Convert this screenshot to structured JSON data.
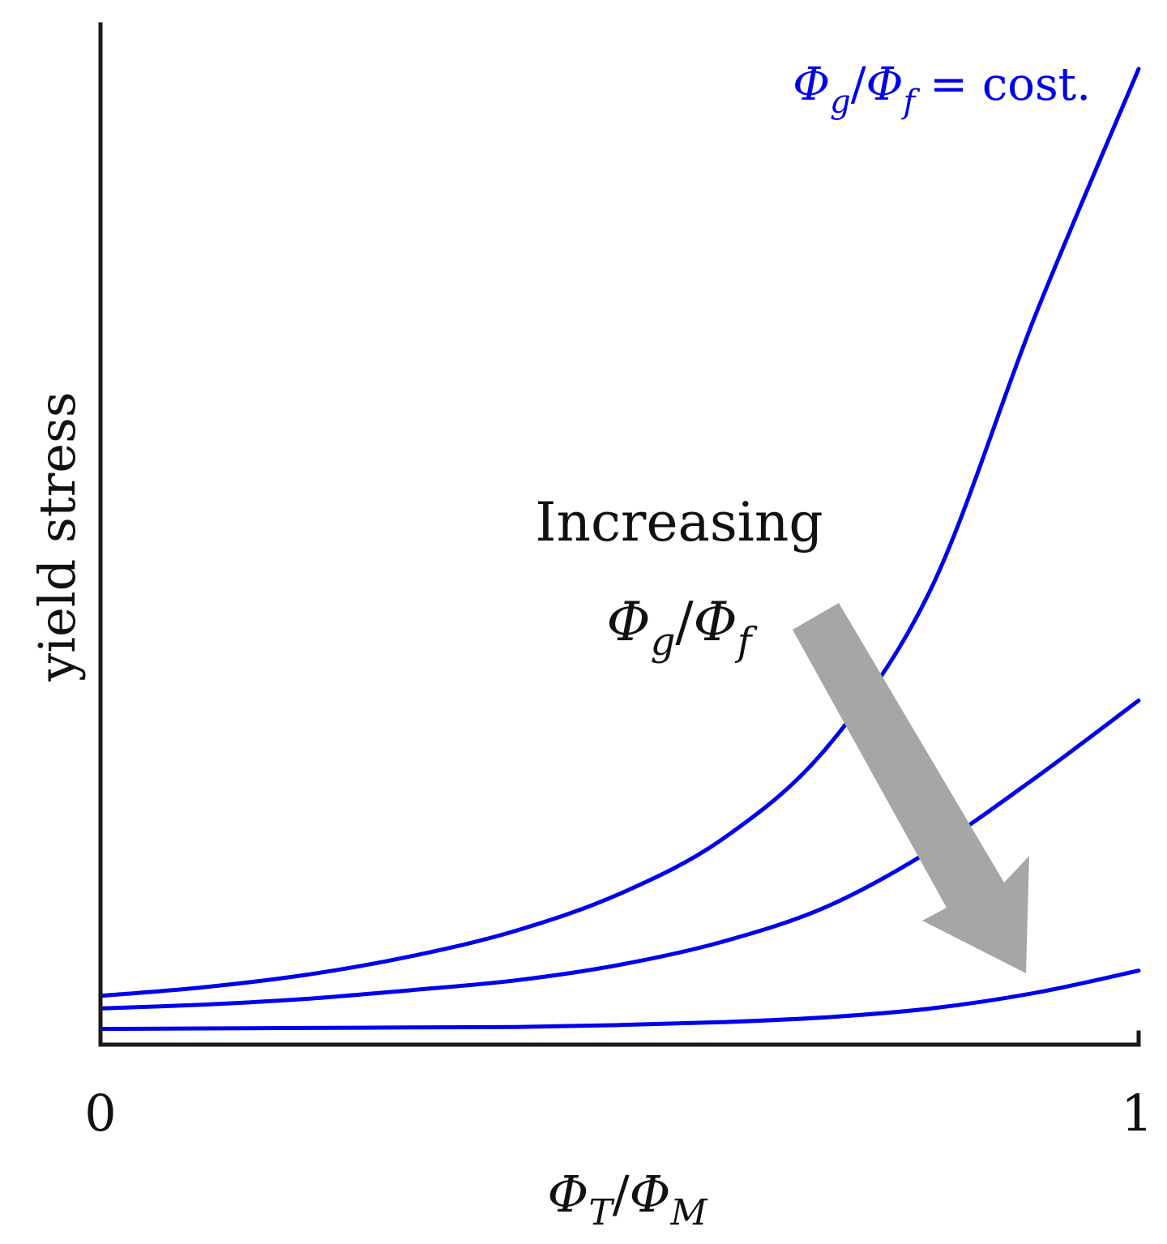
{
  "chart_data": {
    "type": "line",
    "xlabel": {
      "base1": "Φ",
      "sub1": "T",
      "slash": "/",
      "base2": "Φ",
      "sub2": "M"
    },
    "ylabel": "yield stress",
    "xlim": [
      0,
      1
    ],
    "xticks": [
      "0",
      "1"
    ],
    "grid": false,
    "curve_annotation": {
      "base1": "Φ",
      "sub1": "g",
      "slash": "/",
      "base2": "Φ",
      "sub2": "f",
      "suffix": " = cost."
    },
    "trend_annotation": {
      "line1": "Increasing",
      "base1": "Φ",
      "sub1": "g",
      "slash": "/",
      "base2": "Φ",
      "sub2": "f"
    },
    "colors": {
      "series": "#0000ee",
      "arrow": "#a6a6a6",
      "axis": "#1a1a1a"
    },
    "series": [
      {
        "points": [
          [
            0,
            0.046
          ],
          [
            0.1,
            0.055
          ],
          [
            0.2,
            0.068
          ],
          [
            0.3,
            0.087
          ],
          [
            0.4,
            0.113
          ],
          [
            0.5,
            0.151
          ],
          [
            0.6,
            0.208
          ],
          [
            0.7,
            0.302
          ],
          [
            0.8,
            0.465
          ],
          [
            0.9,
            0.745
          ],
          [
            1.0,
            1.0
          ]
        ]
      },
      {
        "points": [
          [
            0,
            0.033
          ],
          [
            0.1,
            0.037
          ],
          [
            0.2,
            0.043
          ],
          [
            0.3,
            0.052
          ],
          [
            0.4,
            0.062
          ],
          [
            0.5,
            0.078
          ],
          [
            0.6,
            0.102
          ],
          [
            0.7,
            0.138
          ],
          [
            0.8,
            0.196
          ],
          [
            0.9,
            0.27
          ],
          [
            1.0,
            0.35
          ]
        ]
      },
      {
        "points": [
          [
            0,
            0.012
          ],
          [
            0.1,
            0.0125
          ],
          [
            0.2,
            0.013
          ],
          [
            0.3,
            0.0135
          ],
          [
            0.4,
            0.014
          ],
          [
            0.5,
            0.016
          ],
          [
            0.6,
            0.019
          ],
          [
            0.7,
            0.024
          ],
          [
            0.8,
            0.033
          ],
          [
            0.9,
            0.049
          ],
          [
            1.0,
            0.072
          ]
        ]
      }
    ]
  },
  "icons": {
    "trend_arrow": "down-right-arrow-icon"
  }
}
